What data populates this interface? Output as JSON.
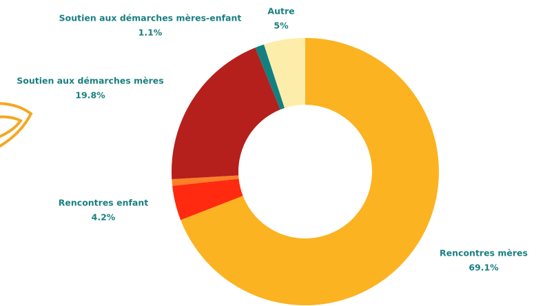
{
  "chart_data": {
    "type": "donut",
    "categories": [
      "Rencontres mères",
      "Rencontres enfant",
      null,
      "Soutien aux démarches mères",
      "Soutien aux démarches mères-enfant",
      "Autre"
    ],
    "values": [
      69.1,
      4.2,
      0.8,
      19.8,
      1.1,
      5
    ],
    "value_labels": [
      "69.1%",
      "4.2%",
      null,
      "19.8%",
      "1.1%",
      "5%"
    ],
    "colors": [
      "#fbb321",
      "#ff2a0f",
      "#ff7f27",
      "#b5201c",
      "#128080",
      "#fdedaa"
    ]
  }
}
